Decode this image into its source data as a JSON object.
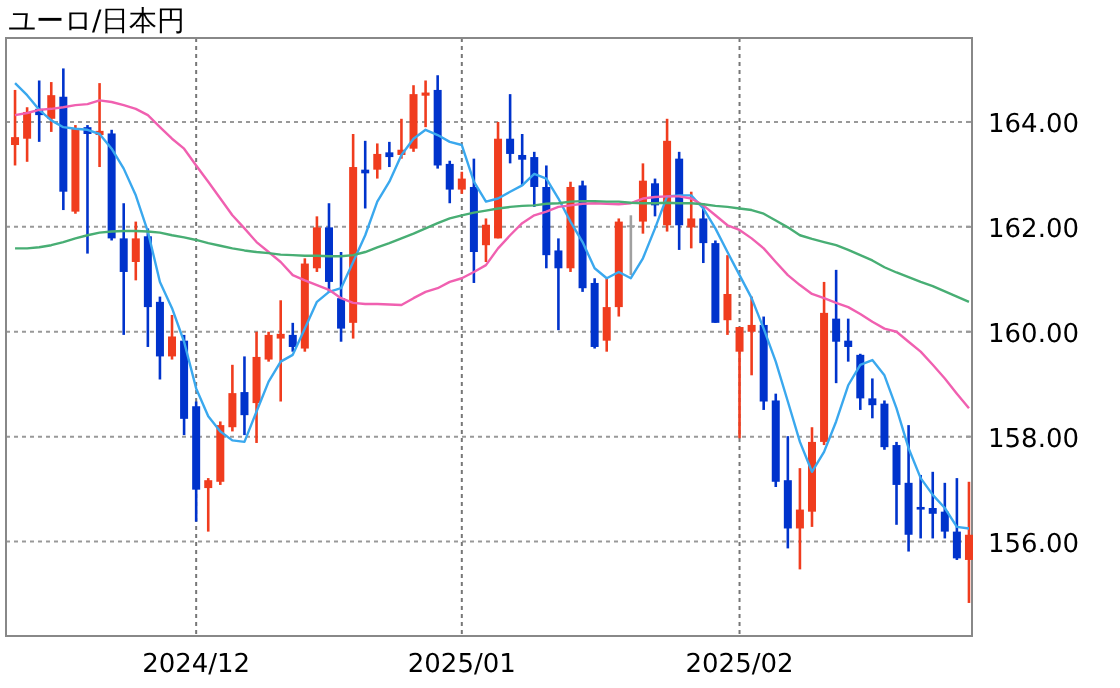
{
  "chart_data": {
    "type": "candlestick",
    "title": "ユーロ/日本円",
    "categories": [
      null,
      null,
      null,
      null,
      null,
      null,
      null,
      null,
      null,
      null,
      null,
      null,
      null,
      null,
      null,
      "2024/12",
      null,
      null,
      null,
      null,
      null,
      null,
      null,
      null,
      null,
      null,
      null,
      null,
      null,
      null,
      null,
      null,
      null,
      null,
      null,
      null,
      null,
      "2025/01",
      null,
      null,
      null,
      null,
      null,
      null,
      null,
      null,
      null,
      null,
      null,
      null,
      null,
      null,
      null,
      null,
      null,
      null,
      null,
      null,
      null,
      null,
      "2025/02",
      null,
      null,
      null,
      null,
      null,
      null,
      null,
      null,
      null,
      null,
      null,
      null,
      null,
      null,
      null,
      null,
      null,
      null,
      null
    ],
    "ohlc": [
      [
        163.56,
        164.61,
        163.17,
        163.71
      ],
      [
        163.68,
        164.28,
        163.24,
        164.19
      ],
      [
        164.25,
        164.79,
        163.62,
        164.13
      ],
      [
        164.06,
        164.76,
        163.81,
        164.51
      ],
      [
        164.48,
        165.02,
        162.32,
        162.67
      ],
      [
        162.29,
        163.94,
        162.25,
        163.87
      ],
      [
        163.9,
        163.94,
        161.49,
        163.77
      ],
      [
        163.75,
        164.74,
        163.14,
        163.83
      ],
      [
        163.78,
        163.85,
        161.74,
        161.78
      ],
      [
        161.78,
        162.45,
        159.94,
        161.14
      ],
      [
        161.33,
        162.1,
        160.98,
        161.78
      ],
      [
        161.82,
        161.97,
        159.71,
        160.47
      ],
      [
        160.57,
        160.67,
        159.09,
        159.53
      ],
      [
        159.53,
        160.32,
        159.47,
        159.91
      ],
      [
        159.83,
        159.94,
        158.03,
        158.34
      ],
      [
        158.58,
        158.67,
        156.38,
        156.99
      ],
      [
        157.02,
        157.21,
        156.19,
        157.17
      ],
      [
        157.14,
        158.29,
        157.08,
        158.22
      ],
      [
        158.18,
        159.37,
        158.1,
        158.83
      ],
      [
        158.85,
        159.53,
        158.03,
        158.41
      ],
      [
        158.64,
        160.0,
        157.88,
        159.52
      ],
      [
        159.47,
        160.0,
        159.43,
        159.94
      ],
      [
        159.87,
        160.6,
        158.67,
        159.96
      ],
      [
        159.94,
        160.17,
        159.62,
        159.71
      ],
      [
        159.68,
        161.4,
        159.62,
        161.3
      ],
      [
        161.21,
        162.2,
        161.14,
        161.99
      ],
      [
        161.99,
        162.45,
        160.76,
        160.95
      ],
      [
        160.64,
        161.52,
        159.81,
        160.06
      ],
      [
        160.17,
        163.77,
        159.87,
        163.14
      ],
      [
        163.09,
        163.64,
        162.35,
        163.02
      ],
      [
        163.09,
        163.59,
        162.92,
        163.39
      ],
      [
        163.42,
        163.62,
        163.14,
        163.33
      ],
      [
        163.37,
        164.06,
        163.3,
        163.47
      ],
      [
        163.49,
        164.7,
        163.43,
        164.53
      ],
      [
        164.5,
        164.79,
        163.9,
        164.56
      ],
      [
        164.61,
        164.89,
        163.11,
        163.17
      ],
      [
        163.2,
        163.26,
        162.45,
        162.71
      ],
      [
        162.71,
        163.05,
        162.63,
        162.92
      ],
      [
        162.76,
        163.3,
        160.93,
        161.52
      ],
      [
        161.65,
        162.16,
        161.33,
        162.04
      ],
      [
        161.78,
        164.0,
        161.78,
        163.68
      ],
      [
        163.68,
        164.53,
        163.21,
        163.39
      ],
      [
        163.37,
        163.77,
        162.79,
        163.28
      ],
      [
        163.33,
        163.43,
        162.38,
        162.76
      ],
      [
        162.76,
        163.17,
        161.21,
        161.46
      ],
      [
        161.55,
        161.78,
        160.03,
        161.21
      ],
      [
        161.21,
        162.86,
        161.14,
        162.76
      ],
      [
        162.79,
        162.88,
        160.76,
        160.83
      ],
      [
        160.93,
        161.02,
        159.68,
        159.71
      ],
      [
        159.83,
        161.02,
        159.62,
        160.47
      ],
      [
        160.47,
        162.16,
        160.29,
        162.1
      ],
      [
        162.03,
        162.22,
        161.08,
        162.03
      ],
      [
        162.1,
        163.21,
        161.87,
        162.88
      ],
      [
        162.83,
        162.92,
        162.2,
        162.41
      ],
      [
        162.03,
        164.06,
        161.91,
        163.64
      ],
      [
        163.3,
        163.43,
        161.56,
        162.03
      ],
      [
        161.99,
        162.67,
        161.59,
        162.16
      ],
      [
        162.16,
        162.45,
        161.31,
        161.69
      ],
      [
        161.69,
        161.74,
        160.17,
        160.17
      ],
      [
        160.22,
        161.46,
        159.94,
        160.72
      ],
      [
        159.62,
        160.09,
        157.97,
        160.09
      ],
      [
        160.0,
        160.67,
        159.17,
        160.13
      ],
      [
        160.13,
        160.29,
        158.51,
        158.67
      ],
      [
        158.69,
        158.82,
        157.04,
        157.14
      ],
      [
        157.17,
        158.01,
        155.87,
        156.25
      ],
      [
        156.25,
        157.4,
        155.47,
        156.61
      ],
      [
        156.57,
        158.18,
        156.28,
        157.9
      ],
      [
        157.9,
        160.95,
        157.84,
        160.36
      ],
      [
        160.25,
        161.18,
        159.02,
        159.81
      ],
      [
        159.83,
        160.25,
        159.43,
        159.71
      ],
      [
        159.56,
        159.58,
        158.51,
        158.73
      ],
      [
        158.73,
        159.11,
        158.35,
        158.6
      ],
      [
        158.63,
        158.69,
        157.75,
        157.8
      ],
      [
        157.84,
        157.9,
        156.32,
        157.08
      ],
      [
        157.12,
        158.22,
        155.81,
        156.13
      ],
      [
        156.66,
        157.27,
        156.06,
        156.61
      ],
      [
        156.64,
        157.33,
        156.06,
        156.53
      ],
      [
        156.57,
        157.12,
        156.06,
        156.19
      ],
      [
        156.19,
        157.21,
        155.65,
        155.68
      ],
      [
        155.65,
        157.14,
        154.83,
        156.13
      ]
    ],
    "colors": [
      "#f03c1e",
      "#f03c1e",
      "#0033cc",
      "#f03c1e",
      "#0033cc",
      "#f03c1e",
      "#0033cc",
      "#f03c1e",
      "#0033cc",
      "#0033cc",
      "#f03c1e",
      "#0033cc",
      "#0033cc",
      "#f03c1e",
      "#0033cc",
      "#0033cc",
      "#f03c1e",
      "#f03c1e",
      "#f03c1e",
      "#0033cc",
      "#f03c1e",
      "#f03c1e",
      "#f03c1e",
      "#0033cc",
      "#f03c1e",
      "#f03c1e",
      "#0033cc",
      "#0033cc",
      "#f03c1e",
      "#0033cc",
      "#f03c1e",
      "#0033cc",
      "#f03c1e",
      "#f03c1e",
      "#f03c1e",
      "#0033cc",
      "#0033cc",
      "#f03c1e",
      "#0033cc",
      "#f03c1e",
      "#f03c1e",
      "#0033cc",
      "#0033cc",
      "#0033cc",
      "#0033cc",
      "#0033cc",
      "#f03c1e",
      "#0033cc",
      "#0033cc",
      "#f03c1e",
      "#f03c1e",
      "#a0a0a0",
      "#f03c1e",
      "#0033cc",
      "#f03c1e",
      "#0033cc",
      "#f03c1e",
      "#0033cc",
      "#0033cc",
      "#f03c1e",
      "#f03c1e",
      "#f03c1e",
      "#0033cc",
      "#0033cc",
      "#0033cc",
      "#f03c1e",
      "#f03c1e",
      "#f03c1e",
      "#0033cc",
      "#0033cc",
      "#0033cc",
      "#0033cc",
      "#0033cc",
      "#0033cc",
      "#0033cc",
      "#0033cc",
      "#0033cc",
      "#0033cc",
      "#0033cc",
      "#f03c1e"
    ],
    "series": [
      {
        "type": "line",
        "color": "#3aa8ee",
        "values": [
          164.74,
          164.51,
          164.23,
          164.03,
          163.9,
          163.87,
          163.85,
          163.77,
          163.49,
          163.11,
          162.6,
          161.91,
          160.95,
          160.45,
          159.81,
          158.92,
          158.39,
          158.1,
          157.93,
          157.9,
          158.48,
          159.05,
          159.43,
          159.56,
          160.06,
          160.57,
          160.76,
          160.83,
          161.33,
          161.84,
          162.48,
          162.86,
          163.37,
          163.68,
          163.85,
          163.75,
          163.62,
          163.56,
          162.86,
          162.48,
          162.54,
          162.67,
          162.79,
          163.01,
          162.92,
          162.54,
          162.1,
          161.71,
          161.21,
          161.02,
          161.14,
          161.02,
          161.4,
          161.97,
          162.58,
          162.6,
          162.6,
          162.35,
          161.97,
          161.52,
          161.08,
          160.64,
          160.06,
          159.43,
          158.67,
          157.9,
          157.33,
          157.71,
          158.29,
          158.98,
          159.37,
          159.46,
          159.17,
          158.54,
          157.78,
          157.21,
          156.89,
          156.64,
          156.28,
          156.25
        ]
      },
      {
        "type": "line",
        "color": "#f060b0",
        "values": [
          164.13,
          164.17,
          164.23,
          164.25,
          164.28,
          164.32,
          164.34,
          164.41,
          164.38,
          164.32,
          164.25,
          164.13,
          163.9,
          163.68,
          163.49,
          163.17,
          162.86,
          162.54,
          162.22,
          161.97,
          161.71,
          161.52,
          161.33,
          161.08,
          160.98,
          160.89,
          160.8,
          160.64,
          160.55,
          160.53,
          160.53,
          160.52,
          160.51,
          160.64,
          160.76,
          160.83,
          160.95,
          161.02,
          161.14,
          161.27,
          161.59,
          161.84,
          162.07,
          162.22,
          162.29,
          162.38,
          162.41,
          162.44,
          162.45,
          162.44,
          162.43,
          162.45,
          162.54,
          162.57,
          162.58,
          162.58,
          162.54,
          162.41,
          162.22,
          162.03,
          161.94,
          161.78,
          161.59,
          161.33,
          161.08,
          160.89,
          160.72,
          160.64,
          160.55,
          160.47,
          160.34,
          160.19,
          160.06,
          160.0,
          159.81,
          159.62,
          159.37,
          159.11,
          158.82,
          158.54
        ]
      },
      {
        "type": "line",
        "color": "#48ae74",
        "values": [
          161.59,
          161.59,
          161.61,
          161.65,
          161.71,
          161.78,
          161.84,
          161.89,
          161.91,
          161.92,
          161.92,
          161.91,
          161.89,
          161.84,
          161.8,
          161.75,
          161.69,
          161.64,
          161.59,
          161.55,
          161.52,
          161.5,
          161.47,
          161.46,
          161.45,
          161.45,
          161.44,
          161.44,
          161.46,
          161.52,
          161.61,
          161.69,
          161.78,
          161.87,
          161.97,
          162.07,
          162.16,
          162.22,
          162.27,
          162.31,
          162.35,
          162.38,
          162.4,
          162.41,
          162.44,
          162.45,
          162.48,
          162.49,
          162.49,
          162.48,
          162.48,
          162.46,
          162.45,
          162.45,
          162.46,
          162.45,
          162.45,
          162.43,
          162.4,
          162.38,
          162.35,
          162.32,
          162.25,
          162.12,
          161.99,
          161.84,
          161.77,
          161.71,
          161.65,
          161.56,
          161.46,
          161.36,
          161.23,
          161.13,
          161.04,
          160.95,
          160.87,
          160.77,
          160.67,
          160.57
        ]
      }
    ],
    "ylim": [
      154.2,
      165.6
    ],
    "yticks": [
      {
        "value": 156,
        "label": "156.00"
      },
      {
        "value": 158,
        "label": "158.00"
      },
      {
        "value": 160,
        "label": "160.00"
      },
      {
        "value": 162,
        "label": "162.00"
      },
      {
        "value": 164,
        "label": "164.00"
      }
    ],
    "grid": true
  }
}
